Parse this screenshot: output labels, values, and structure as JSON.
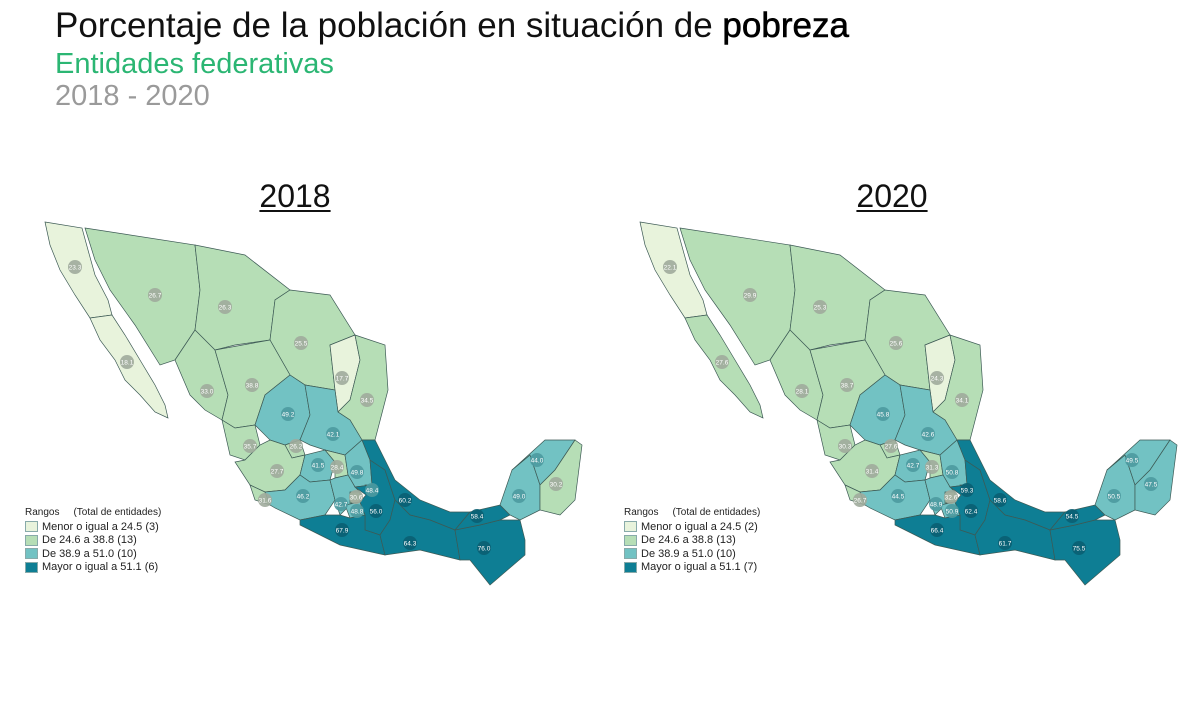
{
  "header": {
    "title": "Porcentaje de la población en situación de ",
    "title_bold": "pobreza",
    "subtitle": "Entidades federativas",
    "period": "2018 - 2020"
  },
  "colors": {
    "subtitle": "#2bb673",
    "ranges": [
      "#e8f3dc",
      "#b6deb6",
      "#72c2c3",
      "#0e7e94"
    ]
  },
  "legend_header": {
    "title": "Rangos",
    "subtitle": "(Total de entidades)"
  },
  "maps": [
    {
      "year": "2018",
      "legend": [
        "Menor o igual a 24.5 (3)",
        "De 24.6 a 38.8 (13)",
        "De 38.9 a 51.0 (10)",
        "Mayor o igual a 51.1 (6)"
      ],
      "states": [
        {
          "value": "23.3",
          "range": 0
        },
        {
          "value": "18.1",
          "range": 0
        },
        {
          "value": "26.7",
          "range": 1
        },
        {
          "value": "26.3",
          "range": 1
        },
        {
          "value": "25.5",
          "range": 1
        },
        {
          "value": "17.7",
          "range": 0
        },
        {
          "value": "34.5",
          "range": 1
        },
        {
          "value": "33.0",
          "range": 1
        },
        {
          "value": "38.8",
          "range": 1
        },
        {
          "value": "49.2",
          "range": 2
        },
        {
          "value": "42.1",
          "range": 2
        },
        {
          "value": "35.7",
          "range": 1
        },
        {
          "value": "26.2",
          "range": 1
        },
        {
          "value": "27.7",
          "range": 1
        },
        {
          "value": "41.5",
          "range": 2
        },
        {
          "value": "28.4",
          "range": 1
        },
        {
          "value": "49.8",
          "range": 2
        },
        {
          "value": "31.6",
          "range": 1
        },
        {
          "value": "46.2",
          "range": 2
        },
        {
          "value": "42.7",
          "range": 2
        },
        {
          "value": "30.6",
          "range": 1
        },
        {
          "value": "48.8",
          "range": 2
        },
        {
          "value": "48.4",
          "range": 2
        },
        {
          "value": "56.0",
          "range": 3
        },
        {
          "value": "60.2",
          "range": 3
        },
        {
          "value": "67.9",
          "range": 3
        },
        {
          "value": "64.3",
          "range": 3
        },
        {
          "value": "76.0",
          "range": 3
        },
        {
          "value": "58.4",
          "range": 3
        },
        {
          "value": "49.0",
          "range": 2
        },
        {
          "value": "44.0",
          "range": 2
        },
        {
          "value": "30.2",
          "range": 1
        }
      ]
    },
    {
      "year": "2020",
      "legend": [
        "Menor o igual a 24.5 (2)",
        "De 24.6 a 38.8 (13)",
        "De 38.9 a 51.0 (10)",
        "Mayor o igual a 51.1 (7)"
      ],
      "states": [
        {
          "value": "22.1",
          "range": 0
        },
        {
          "value": "27.6",
          "range": 1
        },
        {
          "value": "29.9",
          "range": 1
        },
        {
          "value": "25.3",
          "range": 1
        },
        {
          "value": "25.6",
          "range": 1
        },
        {
          "value": "24.3",
          "range": 0
        },
        {
          "value": "34.1",
          "range": 1
        },
        {
          "value": "28.1",
          "range": 1
        },
        {
          "value": "38.7",
          "range": 1
        },
        {
          "value": "45.8",
          "range": 2
        },
        {
          "value": "42.6",
          "range": 2
        },
        {
          "value": "30.3",
          "range": 1
        },
        {
          "value": "27.6",
          "range": 1
        },
        {
          "value": "31.4",
          "range": 1
        },
        {
          "value": "42.7",
          "range": 2
        },
        {
          "value": "31.3",
          "range": 1
        },
        {
          "value": "50.8",
          "range": 2
        },
        {
          "value": "26.7",
          "range": 1
        },
        {
          "value": "44.5",
          "range": 2
        },
        {
          "value": "48.9",
          "range": 2
        },
        {
          "value": "32.6",
          "range": 1
        },
        {
          "value": "50.9",
          "range": 2
        },
        {
          "value": "59.3",
          "range": 3
        },
        {
          "value": "62.4",
          "range": 3
        },
        {
          "value": "58.6",
          "range": 3
        },
        {
          "value": "66.4",
          "range": 3
        },
        {
          "value": "61.7",
          "range": 3
        },
        {
          "value": "75.5",
          "range": 3
        },
        {
          "value": "54.5",
          "range": 3
        },
        {
          "value": "50.5",
          "range": 2
        },
        {
          "value": "49.5",
          "range": 2
        },
        {
          "value": "47.5",
          "range": 2
        }
      ]
    }
  ]
}
